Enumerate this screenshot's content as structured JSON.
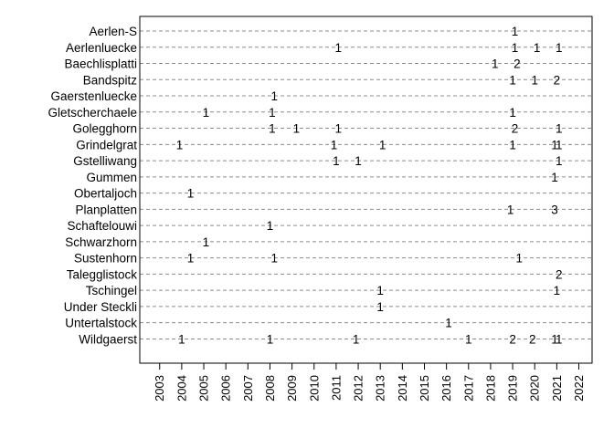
{
  "chart_data": {
    "type": "scatter",
    "title": "",
    "xlabel": "",
    "ylabel": "",
    "xlim": [
      2002.1,
      2022.6
    ],
    "x_ticks": [
      2003,
      2004,
      2005,
      2006,
      2007,
      2008,
      2009,
      2010,
      2011,
      2012,
      2013,
      2014,
      2015,
      2016,
      2017,
      2018,
      2019,
      2020,
      2021,
      2022
    ],
    "categories": [
      "Aerlen-S",
      "Aerlenluecke",
      "Baechlisplatti",
      "Bandspitz",
      "Gaerstenluecke",
      "Gletscherchaele",
      "Golegghorn",
      "Grindelgrat",
      "Gstelliwang",
      "Gummen",
      "Obertaljoch",
      "Planplatten",
      "Schaftelouwi",
      "Schwarzhorn",
      "Sustenhorn",
      "Talegglistock",
      "Tschingel",
      "Under Steckli",
      "Untertalstock",
      "Wildgaerst"
    ],
    "grid": true,
    "legend": "none",
    "points": [
      {
        "category": "Aerlen-S",
        "x": 2019.1,
        "label": "1"
      },
      {
        "category": "Aerlenluecke",
        "x": 2011.1,
        "label": "1"
      },
      {
        "category": "Aerlenluecke",
        "x": 2019.1,
        "label": "1"
      },
      {
        "category": "Aerlenluecke",
        "x": 2020.1,
        "label": "1"
      },
      {
        "category": "Aerlenluecke",
        "x": 2021.1,
        "label": "1"
      },
      {
        "category": "Baechlisplatti",
        "x": 2018.2,
        "label": "1"
      },
      {
        "category": "Baechlisplatti",
        "x": 2019.2,
        "label": "2"
      },
      {
        "category": "Bandspitz",
        "x": 2019.0,
        "label": "1"
      },
      {
        "category": "Bandspitz",
        "x": 2020.0,
        "label": "1"
      },
      {
        "category": "Bandspitz",
        "x": 2021.0,
        "label": "2"
      },
      {
        "category": "Gaerstenluecke",
        "x": 2008.2,
        "label": "1"
      },
      {
        "category": "Gletscherchaele",
        "x": 2005.1,
        "label": "1"
      },
      {
        "category": "Gletscherchaele",
        "x": 2008.1,
        "label": "1"
      },
      {
        "category": "Gletscherchaele",
        "x": 2019.0,
        "label": "1"
      },
      {
        "category": "Golegghorn",
        "x": 2008.1,
        "label": "1"
      },
      {
        "category": "Golegghorn",
        "x": 2009.2,
        "label": "1"
      },
      {
        "category": "Golegghorn",
        "x": 2011.1,
        "label": "1"
      },
      {
        "category": "Golegghorn",
        "x": 2019.1,
        "label": "2"
      },
      {
        "category": "Golegghorn",
        "x": 2021.1,
        "label": "1"
      },
      {
        "category": "Grindelgrat",
        "x": 2003.9,
        "label": "1"
      },
      {
        "category": "Grindelgrat",
        "x": 2010.9,
        "label": "1"
      },
      {
        "category": "Grindelgrat",
        "x": 2013.1,
        "label": "1"
      },
      {
        "category": "Grindelgrat",
        "x": 2019.0,
        "label": "1"
      },
      {
        "category": "Grindelgrat",
        "x": 2020.9,
        "label": "1"
      },
      {
        "category": "Grindelgrat",
        "x": 2021.1,
        "label": "1"
      },
      {
        "category": "Gstelliwang",
        "x": 2011.0,
        "label": "1"
      },
      {
        "category": "Gstelliwang",
        "x": 2012.0,
        "label": "1"
      },
      {
        "category": "Gstelliwang",
        "x": 2021.1,
        "label": "1"
      },
      {
        "category": "Gummen",
        "x": 2020.9,
        "label": "1"
      },
      {
        "category": "Obertaljoch",
        "x": 2004.4,
        "label": "1"
      },
      {
        "category": "Planplatten",
        "x": 2018.9,
        "label": "1"
      },
      {
        "category": "Planplatten",
        "x": 2020.9,
        "label": "3"
      },
      {
        "category": "Schaftelouwi",
        "x": 2008.0,
        "label": "1"
      },
      {
        "category": "Schwarzhorn",
        "x": 2005.1,
        "label": "1"
      },
      {
        "category": "Sustenhorn",
        "x": 2004.4,
        "label": "1"
      },
      {
        "category": "Sustenhorn",
        "x": 2008.2,
        "label": "1"
      },
      {
        "category": "Sustenhorn",
        "x": 2019.3,
        "label": "1"
      },
      {
        "category": "Talegglistock",
        "x": 2021.1,
        "label": "2"
      },
      {
        "category": "Tschingel",
        "x": 2013.0,
        "label": "1"
      },
      {
        "category": "Tschingel",
        "x": 2021.0,
        "label": "1"
      },
      {
        "category": "Under Steckli",
        "x": 2013.0,
        "label": "1"
      },
      {
        "category": "Untertalstock",
        "x": 2016.1,
        "label": "1"
      },
      {
        "category": "Wildgaerst",
        "x": 2004.0,
        "label": "1"
      },
      {
        "category": "Wildgaerst",
        "x": 2008.0,
        "label": "1"
      },
      {
        "category": "Wildgaerst",
        "x": 2011.9,
        "label": "1"
      },
      {
        "category": "Wildgaerst",
        "x": 2017.0,
        "label": "1"
      },
      {
        "category": "Wildgaerst",
        "x": 2019.0,
        "label": "2"
      },
      {
        "category": "Wildgaerst",
        "x": 2019.9,
        "label": "2"
      },
      {
        "category": "Wildgaerst",
        "x": 2020.9,
        "label": "1"
      },
      {
        "category": "Wildgaerst",
        "x": 2021.1,
        "label": "1"
      }
    ]
  }
}
